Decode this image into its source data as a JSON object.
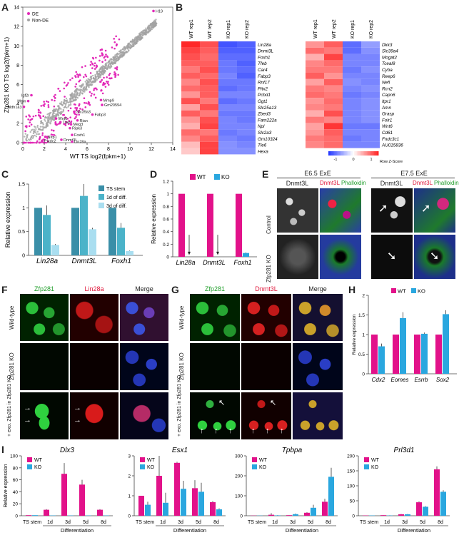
{
  "panels": {
    "A": "A",
    "B": "B",
    "C": "C",
    "D": "D",
    "E": "E",
    "F": "F",
    "G": "G",
    "H": "H",
    "I": "I"
  },
  "colors": {
    "wt": "#e2128a",
    "ko": "#2aa7df",
    "ts": "#3a8fa8",
    "d1": "#4bb3c9",
    "d3": "#a9def0",
    "de": "#e22ab8",
    "nonde": "#a3a3a3"
  },
  "chart_data": [
    {
      "id": "A",
      "type": "scatter",
      "xlabel": "WT TS log2(fpkm+1)",
      "ylabel": "Zfp281 KO TS log2(fpkm+1)",
      "xlim": [
        0,
        14
      ],
      "ylim": [
        0,
        14
      ],
      "xticks": [
        0,
        2,
        4,
        6,
        8,
        10,
        12,
        14
      ],
      "yticks": [
        0,
        2,
        4,
        6,
        8,
        10,
        12,
        14
      ],
      "legend": [
        "DE",
        "Non-DE"
      ],
      "labeled_points": [
        {
          "label": "H19",
          "x": 12.2,
          "y": 13.6
        },
        {
          "label": "Igf2r",
          "x": 0.8,
          "y": 4.9
        },
        {
          "label": "Mtpn",
          "x": 0.5,
          "y": 4.3
        },
        {
          "label": "Aldh1a3",
          "x": 0.1,
          "y": 3.7
        },
        {
          "label": "Mmp9",
          "x": 7.3,
          "y": 4.4
        },
        {
          "label": "Gm20594",
          "x": 7.4,
          "y": 3.9
        },
        {
          "label": "Slc39a3",
          "x": 4.8,
          "y": 3.2
        },
        {
          "label": "Fabp3",
          "x": 6.5,
          "y": 2.9
        },
        {
          "label": "Wnt6",
          "x": 3.1,
          "y": 2.5
        },
        {
          "label": "Rian",
          "x": 5.1,
          "y": 2.3
        },
        {
          "label": "Tfeb",
          "x": 3.5,
          "y": 2.1
        },
        {
          "label": "Meg3",
          "x": 4.5,
          "y": 1.9
        },
        {
          "label": "Ripk3",
          "x": 4.4,
          "y": 1.5
        },
        {
          "label": "Foxh1",
          "x": 4.6,
          "y": 0.8
        },
        {
          "label": "Nlrp1",
          "x": 2.1,
          "y": 0.6
        },
        {
          "label": "Dnmt3L",
          "x": 3.6,
          "y": 0.3
        },
        {
          "label": "Lin28a",
          "x": 4.6,
          "y": 0.1
        },
        {
          "label": "Plxdc2",
          "x": 1.8,
          "y": 0.2
        }
      ]
    },
    {
      "id": "B",
      "type": "heatmap",
      "columns": [
        "WT rep1",
        "WT rep2",
        "KO rep1",
        "KO rep2"
      ],
      "rows_left": [
        "Lin28a",
        "Dnmt3L",
        "Foxh1",
        "Tfeb",
        "Car4",
        "Fabp3",
        "Rnf17",
        "Pitx2",
        "Pcbd1",
        "Ggt1",
        "Slc25a13",
        "Zbed3",
        "Fam222a",
        "Npl",
        "Slc2a3",
        "Gm10324",
        "Tle6",
        "Hexa"
      ],
      "rows_right": [
        "Dkk3",
        "Slc39a4",
        "Mogat2",
        "Tceal8",
        "Cyba",
        "Reep6",
        "Nefl",
        "Rcn2",
        "Capn6",
        "Itpr1",
        "Amn",
        "Grasp",
        "Folr1",
        "Wnt6",
        "Cd61",
        "Fndc3c1",
        "AU015836"
      ],
      "values_left": [
        [
          1.6,
          1.3,
          -1.4,
          -1.3
        ],
        [
          1.4,
          1.2,
          -1.3,
          -1.3
        ],
        [
          1.3,
          1.1,
          -1.2,
          -1.2
        ],
        [
          1.2,
          1.2,
          -1.1,
          -1.3
        ],
        [
          1.0,
          1.3,
          -1.1,
          -1.2
        ],
        [
          1.2,
          1.1,
          -1.0,
          -1.3
        ],
        [
          0.9,
          1.3,
          -1.1,
          -1.1
        ],
        [
          1.1,
          1.2,
          -1.2,
          -1.1
        ],
        [
          0.8,
          1.2,
          -1.0,
          -1.0
        ],
        [
          1.3,
          1.0,
          -1.2,
          -1.1
        ],
        [
          0.7,
          1.3,
          -1.0,
          -1.0
        ],
        [
          1.2,
          1.0,
          -1.1,
          -1.1
        ],
        [
          0.8,
          1.3,
          -1.0,
          -1.1
        ],
        [
          0.6,
          1.4,
          -1.0,
          -1.0
        ],
        [
          1.1,
          1.0,
          -1.1,
          -1.0
        ],
        [
          0.9,
          1.2,
          -1.0,
          -1.1
        ],
        [
          0.5,
          1.4,
          -0.9,
          -1.0
        ],
        [
          0.4,
          1.4,
          -0.9,
          -0.9
        ]
      ],
      "values_right": [
        [
          0.8,
          1.2,
          -1.2,
          -0.8
        ],
        [
          1.1,
          1.0,
          -1.2,
          -0.9
        ],
        [
          0.6,
          1.4,
          -1.0,
          -1.0
        ],
        [
          0.9,
          1.1,
          -1.0,
          -1.0
        ],
        [
          1.0,
          1.0,
          -1.1,
          -0.9
        ],
        [
          1.2,
          0.8,
          -1.0,
          -1.0
        ],
        [
          0.7,
          1.2,
          -0.9,
          -1.0
        ],
        [
          1.0,
          0.9,
          -1.0,
          -0.9
        ],
        [
          1.1,
          1.0,
          -1.1,
          -1.0
        ],
        [
          0.8,
          1.1,
          -1.0,
          -0.9
        ],
        [
          0.9,
          1.0,
          -1.0,
          -0.9
        ],
        [
          0.6,
          1.3,
          -1.0,
          -0.9
        ],
        [
          1.0,
          0.9,
          -1.0,
          -0.9
        ],
        [
          0.7,
          1.5,
          -1.1,
          -1.1
        ],
        [
          0.8,
          1.2,
          -1.0,
          -1.0
        ],
        [
          1.0,
          1.1,
          -1.1,
          -1.0
        ],
        [
          0.9,
          1.1,
          -1.0,
          -1.0
        ]
      ],
      "colorbar": {
        "ticks": [
          "-1",
          "0",
          "1"
        ],
        "label": "Row Z-Score"
      }
    },
    {
      "id": "C",
      "type": "bar",
      "ylabel": "Relative expression",
      "ylim": [
        0,
        1.5
      ],
      "yticks": [
        "0",
        "0.5",
        "1",
        "1.5"
      ],
      "categories": [
        "Lin28a",
        "Dnmt3L",
        "Foxh1"
      ],
      "series": [
        {
          "name": "TS stem",
          "values": [
            1,
            1,
            1
          ],
          "err": [
            0,
            0,
            0
          ]
        },
        {
          "name": "1d of diff.",
          "values": [
            0.85,
            1.25,
            0.58
          ],
          "err": [
            0.2,
            0.3,
            0.1
          ]
        },
        {
          "name": "3d of diff.",
          "values": [
            0.22,
            0.55,
            0.09
          ],
          "err": [
            0.02,
            0.03,
            0.01
          ]
        }
      ]
    },
    {
      "id": "D",
      "type": "bar",
      "ylabel": "Relative expression",
      "ylim": [
        0,
        1.2
      ],
      "yticks": [
        "0",
        "0.2",
        "0.4",
        "0.6",
        "0.8",
        "1",
        "1.2"
      ],
      "categories": [
        "Lin28a",
        "Dnmt3L",
        "Foxh1"
      ],
      "series": [
        {
          "name": "WT",
          "values": [
            1,
            1,
            1
          ],
          "err": [
            0,
            0,
            0
          ]
        },
        {
          "name": "KO",
          "values": [
            0,
            0,
            0.06
          ],
          "err": [
            0,
            0,
            0.01
          ]
        }
      ]
    },
    {
      "id": "H",
      "type": "bar",
      "ylabel": "Relative expression",
      "ylim": [
        0,
        2
      ],
      "yticks": [
        "0",
        "0.5",
        "1",
        "1.5",
        "2"
      ],
      "categories": [
        "Cdx2",
        "Eomes",
        "Esrrb",
        "Sox2"
      ],
      "series": [
        {
          "name": "WT",
          "values": [
            1,
            1,
            1,
            1
          ],
          "err": [
            0,
            0,
            0,
            0
          ]
        },
        {
          "name": "KO",
          "values": [
            0.7,
            1.42,
            1.02,
            1.52
          ],
          "err": [
            0.07,
            0.15,
            0.03,
            0.1
          ]
        }
      ]
    },
    {
      "id": "I1",
      "type": "bar",
      "title": "Dlx3",
      "ylabel": "Relative expression",
      "ylim": [
        0,
        100
      ],
      "yticks": [
        "0",
        "20",
        "40",
        "60",
        "80",
        "100"
      ],
      "categories": [
        "TS stem",
        "1d",
        "3d",
        "5d",
        "8d"
      ],
      "xgroup": "Differentiation",
      "series": [
        {
          "name": "WT",
          "values": [
            1,
            10,
            70,
            52,
            10
          ],
          "err": [
            0,
            1,
            18,
            8,
            1
          ]
        },
        {
          "name": "KO",
          "values": [
            1,
            0.5,
            0.5,
            0.5,
            0.5
          ],
          "err": [
            0,
            0,
            0,
            0,
            0
          ]
        }
      ]
    },
    {
      "id": "I2",
      "type": "bar",
      "title": "Esx1",
      "ylim": [
        0,
        3
      ],
      "yticks": [
        "0",
        "1",
        "2",
        "3"
      ],
      "categories": [
        "TS stem",
        "1d",
        "3d",
        "5d",
        "8d"
      ],
      "xgroup": "Differentiation",
      "series": [
        {
          "name": "WT",
          "values": [
            1,
            2,
            2.65,
            1.38,
            0.68
          ],
          "err": [
            0,
            1.3,
            0.05,
            0.4,
            0.05
          ]
        },
        {
          "name": "KO",
          "values": [
            0.55,
            0.65,
            1.35,
            1.2,
            0.32
          ],
          "err": [
            0.15,
            0.5,
            0.4,
            0.45,
            0.05
          ]
        }
      ]
    },
    {
      "id": "I3",
      "type": "bar",
      "title": "Tpbpa",
      "ylim": [
        0,
        300
      ],
      "yticks": [
        "0",
        "100",
        "200",
        "300"
      ],
      "categories": [
        "TS stem",
        "1d",
        "3d",
        "5d",
        "8d"
      ],
      "xgroup": "Differentiation",
      "series": [
        {
          "name": "WT",
          "values": [
            1,
            5,
            3,
            15,
            70
          ],
          "err": [
            0,
            8,
            1,
            3,
            15
          ]
        },
        {
          "name": "KO",
          "values": [
            1,
            2,
            8,
            40,
            195
          ],
          "err": [
            0,
            1,
            3,
            15,
            45
          ]
        }
      ]
    },
    {
      "id": "I4",
      "type": "bar",
      "title": "Prl3d1",
      "ylim": [
        0,
        200
      ],
      "yticks": [
        "0",
        "50",
        "100",
        "150",
        "200"
      ],
      "categories": [
        "TS stem",
        "1d",
        "3d",
        "5d",
        "8d"
      ],
      "xgroup": "Differentiation",
      "series": [
        {
          "name": "WT",
          "values": [
            1,
            2,
            5,
            45,
            155
          ],
          "err": [
            0,
            0.5,
            1,
            3,
            10
          ]
        },
        {
          "name": "KO",
          "values": [
            1,
            1,
            5,
            30,
            80
          ],
          "err": [
            0,
            0.5,
            1,
            2,
            5
          ]
        }
      ]
    }
  ],
  "E": {
    "title_left": "E6.5 ExE",
    "title_right": "E7.5 ExE",
    "ch1": "Dnmt3L",
    "ch2a": "Dnmt3L",
    "ch2b": "Phalloidin",
    "row1": "Control",
    "row2": "Zfp281 KO"
  },
  "F": {
    "headers": [
      "Zfp281",
      "Lin28a",
      "Merge"
    ],
    "rows": [
      "Wild-type",
      "Zfp281 KO",
      "+ exo. Zfp281 in Zfp281 KO"
    ]
  },
  "G": {
    "headers": [
      "Zfp281",
      "Dnmt3L",
      "Merge"
    ],
    "rows": [
      "Wild-type",
      "Zfp281 KO",
      "+ exo. Zfp281 in Zfp281 KO"
    ]
  }
}
